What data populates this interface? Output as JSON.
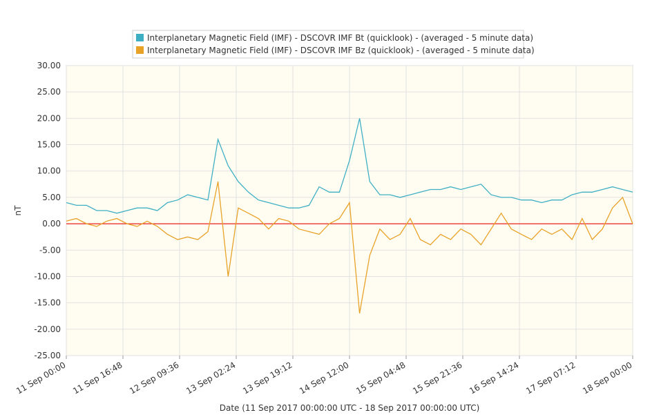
{
  "chart_data": {
    "type": "line",
    "xlabel": "Date (11 Sep 2017 00:00:00 UTC - 18 Sep 2017 00:00:00 UTC)",
    "ylabel": "nT",
    "x": [
      "2017-09-11T00:00",
      "2017-09-11T03:00",
      "2017-09-11T06:00",
      "2017-09-11T09:00",
      "2017-09-11T12:00",
      "2017-09-11T15:00",
      "2017-09-11T18:00",
      "2017-09-11T21:00",
      "2017-09-12T00:00",
      "2017-09-12T03:00",
      "2017-09-12T06:00",
      "2017-09-12T09:00",
      "2017-09-12T12:00",
      "2017-09-12T15:00",
      "2017-09-12T18:00",
      "2017-09-12T21:00",
      "2017-09-13T00:00",
      "2017-09-13T03:00",
      "2017-09-13T06:00",
      "2017-09-13T09:00",
      "2017-09-13T12:00",
      "2017-09-13T15:00",
      "2017-09-13T18:00",
      "2017-09-13T21:00",
      "2017-09-14T00:00",
      "2017-09-14T03:00",
      "2017-09-14T06:00",
      "2017-09-14T09:00",
      "2017-09-14T12:00",
      "2017-09-14T15:00",
      "2017-09-14T18:00",
      "2017-09-14T21:00",
      "2017-09-15T00:00",
      "2017-09-15T03:00",
      "2017-09-15T06:00",
      "2017-09-15T09:00",
      "2017-09-15T12:00",
      "2017-09-15T15:00",
      "2017-09-15T18:00",
      "2017-09-15T21:00",
      "2017-09-16T00:00",
      "2017-09-16T03:00",
      "2017-09-16T06:00",
      "2017-09-16T09:00",
      "2017-09-16T12:00",
      "2017-09-16T15:00",
      "2017-09-16T18:00",
      "2017-09-16T21:00",
      "2017-09-17T00:00",
      "2017-09-17T03:00",
      "2017-09-17T06:00",
      "2017-09-17T09:00",
      "2017-09-17T12:00",
      "2017-09-17T15:00",
      "2017-09-17T18:00",
      "2017-09-17T21:00",
      "2017-09-18T00:00"
    ],
    "series": [
      {
        "name": "Interplanetary Magnetic Field (IMF) - DSCOVR IMF Bt (quicklook) -  (averaged - 5 minute data)",
        "color": "#3eafc3",
        "values": [
          4,
          3.5,
          3.5,
          2.5,
          2.5,
          2,
          2.5,
          3,
          3,
          2.5,
          4,
          4.5,
          5.5,
          5,
          4.5,
          16,
          11,
          8,
          6,
          4.5,
          4,
          3.5,
          3,
          3,
          3.5,
          7,
          6,
          6,
          12,
          20,
          8,
          5.5,
          5.5,
          5,
          5.5,
          6,
          6.5,
          6.5,
          7,
          6.5,
          7,
          7.5,
          5.5,
          5,
          5,
          4.5,
          4.5,
          4,
          4.5,
          4.5,
          5.5,
          6,
          6,
          6.5,
          7,
          6.5,
          6
        ]
      },
      {
        "name": "Interplanetary Magnetic Field (IMF) - DSCOVR IMF Bz (quicklook) -  (averaged - 5 minute data)",
        "color": "#e8a227",
        "values": [
          0.5,
          1,
          0,
          -0.5,
          0.5,
          1,
          0,
          -0.5,
          0.5,
          -0.5,
          -2,
          -3,
          -2.5,
          -3,
          -1.5,
          8,
          -10,
          3,
          2,
          1,
          -1,
          1,
          0.5,
          -1,
          -1.5,
          -2,
          0,
          1,
          4,
          -17,
          -6,
          -1,
          -3,
          -2,
          1,
          -3,
          -4,
          -2,
          -3,
          -1,
          -2,
          -4,
          -1,
          2,
          -1,
          -2,
          -3,
          -1,
          -2,
          -1,
          -3,
          1,
          -3,
          -1,
          3,
          5,
          0
        ]
      }
    ],
    "xlim": [
      "2017-09-11T00:00",
      "2017-09-18T00:00"
    ],
    "xticks": [
      {
        "value": "2017-09-11T00:00",
        "label": "11 Sep 00:00"
      },
      {
        "value": "2017-09-11T16:48",
        "label": "11 Sep 16:48"
      },
      {
        "value": "2017-09-12T09:36",
        "label": "12 Sep 09:36"
      },
      {
        "value": "2017-09-13T02:24",
        "label": "13 Sep 02:24"
      },
      {
        "value": "2017-09-13T19:12",
        "label": "13 Sep 19:12"
      },
      {
        "value": "2017-09-14T12:00",
        "label": "14 Sep 12:00"
      },
      {
        "value": "2017-09-15T04:48",
        "label": "15 Sep 04:48"
      },
      {
        "value": "2017-09-15T21:36",
        "label": "15 Sep 21:36"
      },
      {
        "value": "2017-09-16T14:24",
        "label": "16 Sep 14:24"
      },
      {
        "value": "2017-09-17T07:12",
        "label": "17 Sep 07:12"
      },
      {
        "value": "2017-09-18T00:00",
        "label": "18 Sep 00:00"
      }
    ],
    "ylim": [
      -25,
      30
    ],
    "yticks": [
      {
        "value": 30,
        "label": "30.00"
      },
      {
        "value": 25,
        "label": "25.00"
      },
      {
        "value": 20,
        "label": "20.00"
      },
      {
        "value": 15,
        "label": "15.00"
      },
      {
        "value": 10,
        "label": "10.00"
      },
      {
        "value": 5,
        "label": "5.00"
      },
      {
        "value": 0,
        "label": "0.00"
      },
      {
        "value": -5,
        "label": "-5.00"
      },
      {
        "value": -10,
        "label": "-10.00"
      },
      {
        "value": -15,
        "label": "-15.00"
      },
      {
        "value": -20,
        "label": "-20.00"
      },
      {
        "value": -25,
        "label": "-25.00"
      }
    ],
    "grid": true,
    "zero_line_color": "#e8201a",
    "legend": "top"
  }
}
